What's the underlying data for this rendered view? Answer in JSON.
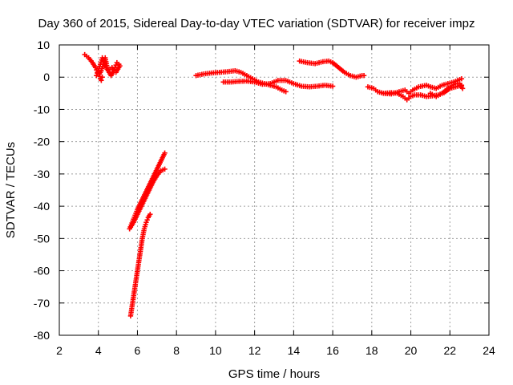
{
  "chart_data": {
    "type": "scatter",
    "title": "Day 360 of 2015, Sidereal Day-to-day VTEC variation (SDTVAR) for receiver impz",
    "xlabel": "GPS time / hours",
    "ylabel": "SDTVAR / TECUs",
    "xlim": [
      2,
      24
    ],
    "ylim": [
      -80,
      10
    ],
    "xticks": [
      2,
      4,
      6,
      8,
      10,
      12,
      14,
      16,
      18,
      20,
      22,
      24
    ],
    "yticks": [
      10,
      0,
      -10,
      -20,
      -30,
      -40,
      -50,
      -60,
      -70,
      -80
    ],
    "grid": true,
    "marker": "plus",
    "color": "#ff0000",
    "series": [
      {
        "points": [
          [
            3.3,
            7
          ],
          [
            3.5,
            6
          ],
          [
            3.7,
            4.5
          ],
          [
            3.85,
            3
          ],
          [
            3.95,
            1.5
          ],
          [
            4.05,
            1
          ],
          [
            4.15,
            2
          ],
          [
            4.25,
            4
          ],
          [
            4.35,
            6
          ],
          [
            4.45,
            3
          ],
          [
            4.55,
            1.5
          ],
          [
            4.65,
            0.5
          ],
          [
            4.75,
            1.5
          ],
          [
            4.85,
            3
          ],
          [
            4.95,
            4.5
          ],
          [
            5.05,
            4
          ]
        ]
      },
      {
        "points": [
          [
            3.9,
            0.5
          ],
          [
            4.0,
            2
          ],
          [
            4.1,
            4
          ],
          [
            4.2,
            6
          ],
          [
            4.3,
            5
          ],
          [
            4.4,
            3
          ],
          [
            4.5,
            2
          ],
          [
            4.6,
            2.5
          ],
          [
            4.7,
            3
          ],
          [
            4.8,
            2
          ],
          [
            4.9,
            1.5
          ],
          [
            5.0,
            2.5
          ],
          [
            5.1,
            3.5
          ]
        ]
      },
      {
        "points": [
          [
            4.05,
            1
          ],
          [
            4.1,
            -0.5
          ],
          [
            4.15,
            -1
          ],
          [
            4.2,
            0
          ]
        ]
      },
      {
        "points": [
          [
            5.6,
            -47
          ],
          [
            5.8,
            -44
          ],
          [
            6.0,
            -41
          ],
          [
            6.2,
            -38.5
          ],
          [
            6.4,
            -36
          ],
          [
            6.6,
            -33.5
          ],
          [
            6.8,
            -31
          ],
          [
            7.0,
            -28.5
          ],
          [
            7.2,
            -26
          ],
          [
            7.4,
            -23.5
          ]
        ]
      },
      {
        "points": [
          [
            5.6,
            -47
          ],
          [
            5.8,
            -45
          ],
          [
            6.0,
            -42.5
          ],
          [
            6.2,
            -40
          ],
          [
            6.4,
            -37.5
          ],
          [
            6.6,
            -35
          ],
          [
            6.8,
            -32.5
          ],
          [
            7.0,
            -30.5
          ],
          [
            7.2,
            -29
          ],
          [
            7.4,
            -28.5
          ]
        ]
      },
      {
        "points": [
          [
            5.65,
            -74
          ],
          [
            5.75,
            -70
          ],
          [
            5.85,
            -66
          ],
          [
            5.95,
            -62
          ],
          [
            6.05,
            -58
          ],
          [
            6.15,
            -54
          ],
          [
            6.25,
            -50
          ],
          [
            6.35,
            -47
          ],
          [
            6.45,
            -45
          ],
          [
            6.55,
            -43.5
          ],
          [
            6.65,
            -42.5
          ]
        ]
      },
      {
        "points": [
          [
            9.0,
            0.5
          ],
          [
            9.4,
            1
          ],
          [
            9.8,
            1.3
          ],
          [
            10.2,
            1.5
          ],
          [
            10.6,
            1.7
          ],
          [
            11.0,
            2
          ],
          [
            11.3,
            1.5
          ],
          [
            11.6,
            0.5
          ],
          [
            11.9,
            -0.5
          ],
          [
            12.2,
            -1.5
          ],
          [
            12.5,
            -2
          ],
          [
            12.8,
            -2.5
          ],
          [
            13.1,
            -3
          ],
          [
            13.4,
            -4
          ],
          [
            13.6,
            -4.5
          ]
        ]
      },
      {
        "points": [
          [
            10.4,
            -1.5
          ],
          [
            10.8,
            -1.5
          ],
          [
            11.2,
            -1.3
          ],
          [
            11.6,
            -1.2
          ],
          [
            12.0,
            -1.5
          ],
          [
            12.4,
            -2.2
          ],
          [
            12.8,
            -2
          ],
          [
            13.2,
            -1
          ],
          [
            13.6,
            -1
          ],
          [
            14.0,
            -2
          ],
          [
            14.4,
            -2.8
          ],
          [
            14.8,
            -3
          ],
          [
            15.2,
            -2.8
          ],
          [
            15.6,
            -2.5
          ],
          [
            16.0,
            -2.8
          ]
        ]
      },
      {
        "points": [
          [
            14.3,
            5
          ],
          [
            14.7,
            4.5
          ],
          [
            15.1,
            4.2
          ],
          [
            15.5,
            4.8
          ],
          [
            15.8,
            5
          ],
          [
            16.0,
            4.5
          ],
          [
            16.3,
            3
          ],
          [
            16.6,
            1.5
          ],
          [
            16.9,
            0.5
          ],
          [
            17.2,
            0
          ],
          [
            17.5,
            0.5
          ],
          [
            17.6,
            0.5
          ]
        ]
      },
      {
        "points": [
          [
            17.8,
            -3
          ],
          [
            18.1,
            -3.5
          ],
          [
            18.3,
            -4.5
          ],
          [
            18.6,
            -5
          ],
          [
            19.0,
            -4.8
          ],
          [
            19.3,
            -5
          ],
          [
            19.6,
            -6
          ],
          [
            19.8,
            -7
          ],
          [
            20.0,
            -6
          ],
          [
            20.2,
            -5.5
          ],
          [
            20.5,
            -5.5
          ],
          [
            20.8,
            -6
          ],
          [
            21.1,
            -5.8
          ],
          [
            21.4,
            -5.5
          ],
          [
            21.7,
            -4.8
          ],
          [
            22.0,
            -3.5
          ],
          [
            22.3,
            -3
          ],
          [
            22.6,
            -2.5
          ]
        ]
      },
      {
        "points": [
          [
            18.6,
            -5
          ],
          [
            19.0,
            -5.2
          ],
          [
            19.4,
            -4.5
          ],
          [
            19.7,
            -4
          ],
          [
            19.9,
            -5
          ],
          [
            20.1,
            -4
          ],
          [
            20.4,
            -3
          ],
          [
            20.8,
            -2.5
          ],
          [
            21.0,
            -3
          ],
          [
            21.3,
            -3.5
          ],
          [
            21.6,
            -2.5
          ],
          [
            21.9,
            -2
          ],
          [
            22.2,
            -1.5
          ],
          [
            22.4,
            -1
          ],
          [
            22.6,
            -0.5
          ]
        ]
      },
      {
        "points": [
          [
            21.0,
            -5
          ],
          [
            21.3,
            -6
          ],
          [
            21.6,
            -5
          ],
          [
            22.0,
            -3
          ],
          [
            22.3,
            -2
          ],
          [
            22.5,
            -2
          ],
          [
            22.65,
            -3.5
          ]
        ]
      }
    ]
  }
}
